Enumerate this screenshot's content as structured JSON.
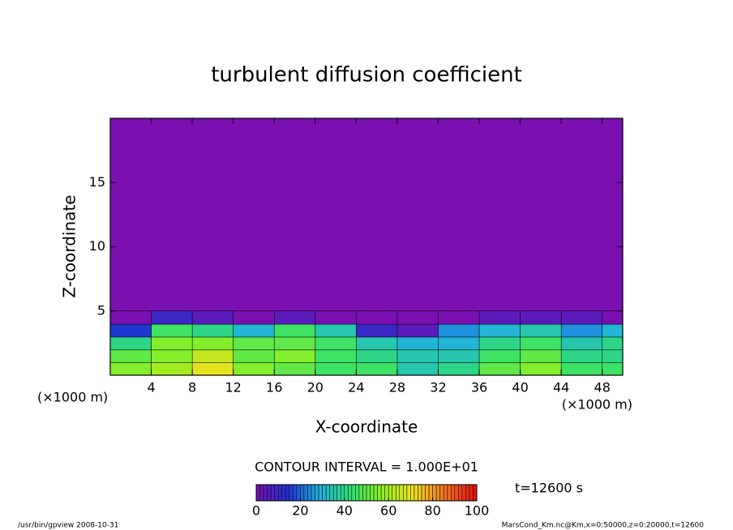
{
  "chart_data": {
    "type": "contour",
    "title": "turbulent diffusion coefficient",
    "x_label": "X-coordinate",
    "y_label": "Z-coordinate",
    "x_unit_label": "(×1000 m)",
    "xlim": [
      0,
      50
    ],
    "xticks": [
      4,
      8,
      12,
      16,
      20,
      24,
      28,
      32,
      36,
      40,
      44,
      48
    ],
    "ylim": [
      0,
      20
    ],
    "yticks": [
      5,
      10,
      15
    ],
    "field": {
      "x": [
        0,
        4,
        8,
        12,
        16,
        20,
        24,
        28,
        32,
        36,
        40,
        44,
        48
      ],
      "z": [
        0,
        1,
        2,
        3,
        4
      ],
      "values": [
        [
          55,
          60,
          70,
          55,
          50,
          45,
          45,
          35,
          40,
          50,
          55,
          45,
          45
        ],
        [
          50,
          55,
          65,
          50,
          55,
          45,
          40,
          35,
          35,
          45,
          50,
          40,
          40
        ],
        [
          40,
          55,
          55,
          50,
          50,
          45,
          35,
          30,
          30,
          40,
          45,
          35,
          40
        ],
        [
          15,
          45,
          40,
          30,
          45,
          35,
          10,
          5,
          25,
          30,
          35,
          25,
          30
        ],
        [
          0,
          10,
          5,
          0,
          5,
          0,
          0,
          0,
          0,
          5,
          5,
          5,
          0
        ]
      ]
    },
    "colormap": [
      "#7a10b0",
      "#2030d0",
      "#20b0e0",
      "#30e070",
      "#90f020",
      "#f0e020",
      "#f07020",
      "#e01010"
    ],
    "clim": [
      0,
      100
    ],
    "colorbar_ticks": [
      0,
      20,
      40,
      60,
      80,
      100
    ],
    "contour_interval": "CONTOUR INTERVAL = 1.000E+01",
    "time_label": "t=12600 s",
    "footer_left": "/usr/bin/gpview  2008-10-31",
    "footer_right": "MarsCond_Km.nc@Km,x=0:50000,z=0:20000,t=12600"
  }
}
